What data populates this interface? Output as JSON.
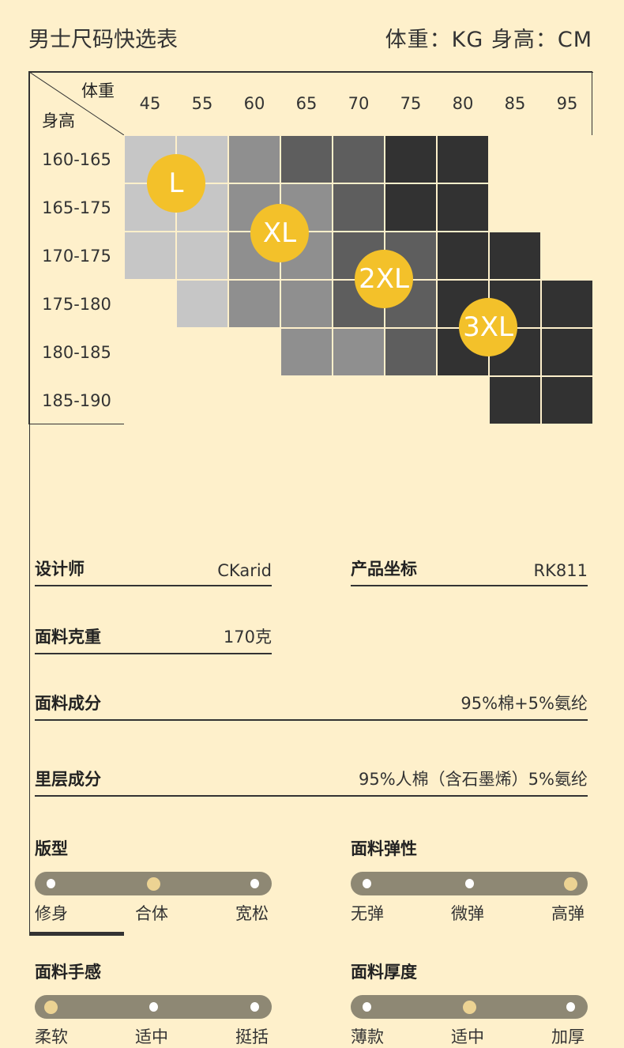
{
  "header": {
    "title": "男士尺码快选表",
    "units": "体重：KG 身高：CM"
  },
  "table": {
    "corner_top": "体重",
    "corner_bottom": "身高",
    "weights": [
      "45",
      "55",
      "60",
      "65",
      "70",
      "75",
      "80",
      "85",
      "95"
    ],
    "heights": [
      "160-165",
      "165-175",
      "170-175",
      "175-180",
      "180-185",
      "185-190"
    ],
    "cell_levels": [
      [
        1,
        1,
        2,
        3,
        3,
        4,
        4,
        0,
        0
      ],
      [
        1,
        1,
        2,
        2,
        3,
        4,
        4,
        0,
        0
      ],
      [
        1,
        1,
        2,
        2,
        3,
        3,
        4,
        4,
        0
      ],
      [
        0,
        1,
        2,
        2,
        3,
        3,
        4,
        4,
        4
      ],
      [
        0,
        0,
        0,
        2,
        2,
        3,
        4,
        4,
        4
      ],
      [
        0,
        0,
        0,
        0,
        0,
        0,
        0,
        4,
        4
      ]
    ],
    "level_colors": [
      "#fef0cb",
      "#c6c6c6",
      "#8f8f8f",
      "#5e5e5e",
      "#323232"
    ],
    "sizes": [
      "L",
      "XL",
      "2XL",
      "3XL"
    ],
    "size_color": "#f3c12a"
  },
  "info": {
    "designer": {
      "label": "设计师",
      "value": "CKarid"
    },
    "product": {
      "label": "产品坐标",
      "value": "RK811"
    },
    "weight": {
      "label": "面料克重",
      "value": "170克"
    },
    "fabric": {
      "label": "面料成分",
      "value": "95%棉+5%氨纶"
    },
    "lining": {
      "label": "里层成分",
      "value": "95%人棉（含石墨烯）5%氨纶"
    }
  },
  "sliders": [
    {
      "title": "版型",
      "options": [
        "修身",
        "合体",
        "宽松"
      ],
      "selected": 1
    },
    {
      "title": "面料弹性",
      "options": [
        "无弹",
        "微弹",
        "高弹"
      ],
      "selected": 2
    },
    {
      "title": "面料手感",
      "options": [
        "柔软",
        "适中",
        "挺括"
      ],
      "selected": 0
    },
    {
      "title": "面料厚度",
      "options": [
        "薄款",
        "适中",
        "加厚"
      ],
      "selected": 1
    }
  ]
}
